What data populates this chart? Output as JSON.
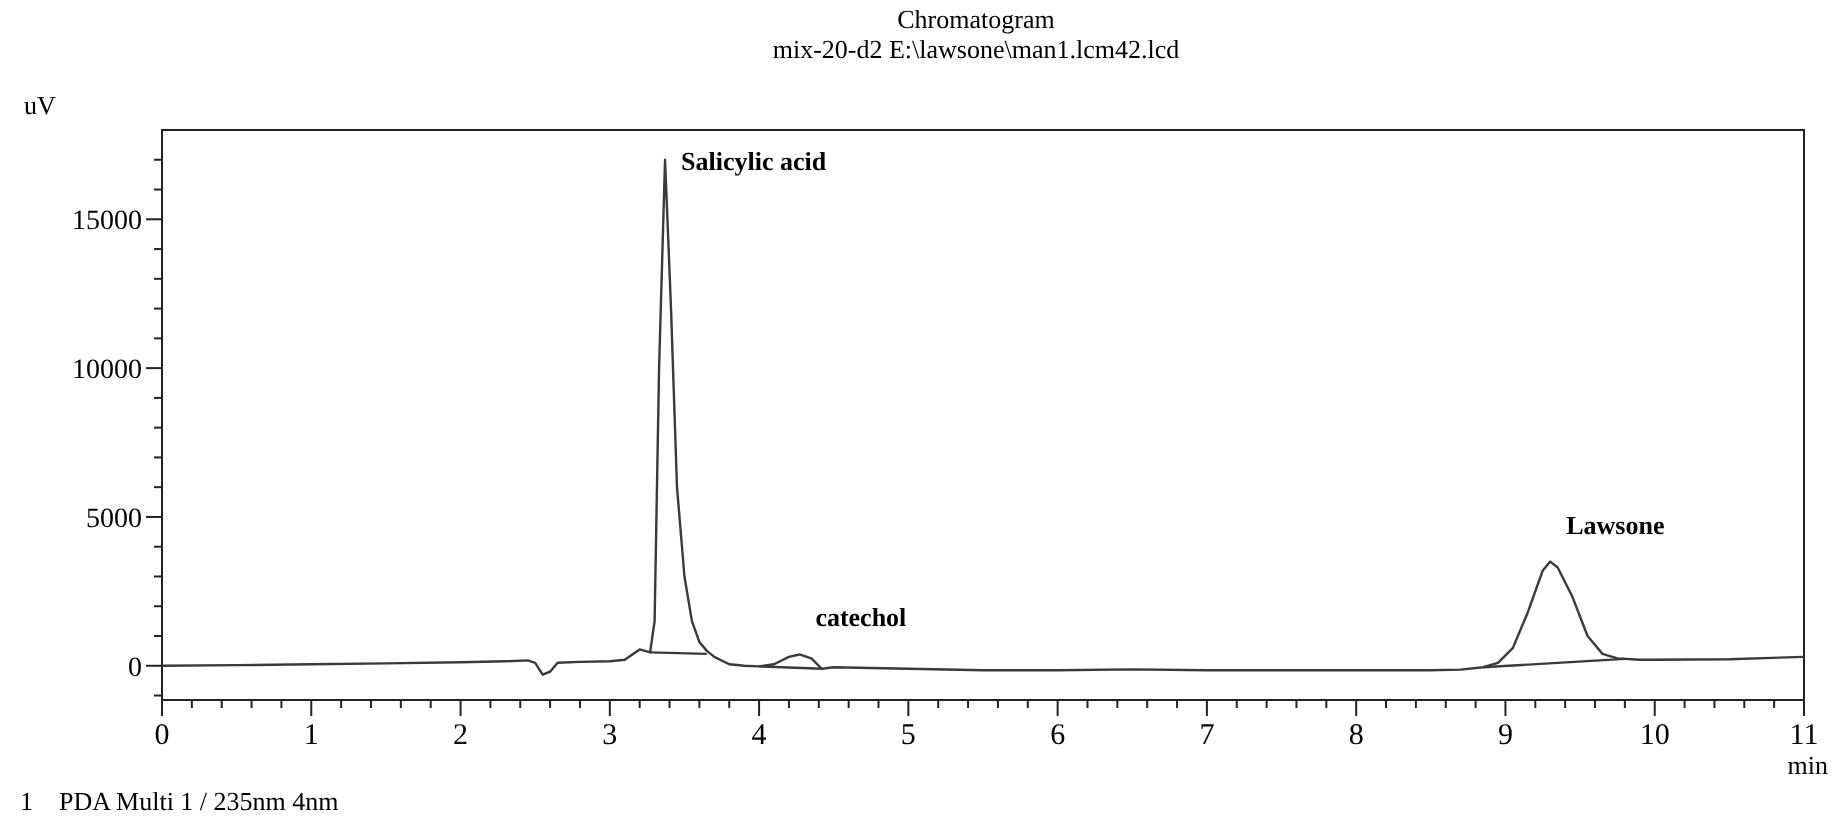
{
  "chart_data": {
    "type": "line",
    "title": "Chromatogram",
    "subtitle": "mix-20-d2 E:\\lawsone\\man1.lcm42.lcd",
    "xlabel": "min",
    "ylabel": "uV",
    "xlim": [
      0,
      11
    ],
    "ylim": [
      -1150,
      18000
    ],
    "xticks": [
      0,
      {
        "value": 0.2,
        "label": null
      },
      {
        "value": 0.4,
        "label": null
      },
      {
        "value": 0.6,
        "label": null
      },
      {
        "value": 0.8,
        "label": null
      },
      1,
      {
        "value": 1.2,
        "label": null
      },
      {
        "value": 1.4,
        "label": null
      },
      {
        "value": 1.6,
        "label": null
      },
      {
        "value": 1.8,
        "label": null
      },
      2,
      {
        "value": 2.2,
        "label": null
      },
      {
        "value": 2.4,
        "label": null
      },
      {
        "value": 2.6,
        "label": null
      },
      {
        "value": 2.8,
        "label": null
      },
      3,
      {
        "value": 3.2,
        "label": null
      },
      {
        "value": 3.4,
        "label": null
      },
      {
        "value": 3.6,
        "label": null
      },
      {
        "value": 3.8,
        "label": null
      },
      4,
      {
        "value": 4.2,
        "label": null
      },
      {
        "value": 4.4,
        "label": null
      },
      {
        "value": 4.6,
        "label": null
      },
      {
        "value": 4.8,
        "label": null
      },
      5,
      {
        "value": 5.2,
        "label": null
      },
      {
        "value": 5.4,
        "label": null
      },
      {
        "value": 5.6,
        "label": null
      },
      {
        "value": 5.8,
        "label": null
      },
      6,
      {
        "value": 6.2,
        "label": null
      },
      {
        "value": 6.4,
        "label": null
      },
      {
        "value": 6.6,
        "label": null
      },
      {
        "value": 6.8,
        "label": null
      },
      7,
      {
        "value": 7.2,
        "label": null
      },
      {
        "value": 7.4,
        "label": null
      },
      {
        "value": 7.6,
        "label": null
      },
      {
        "value": 7.8,
        "label": null
      },
      8,
      {
        "value": 8.2,
        "label": null
      },
      {
        "value": 8.4,
        "label": null
      },
      {
        "value": 8.6,
        "label": null
      },
      {
        "value": 8.8,
        "label": null
      },
      9,
      {
        "value": 9.2,
        "label": null
      },
      {
        "value": 9.4,
        "label": null
      },
      {
        "value": 9.6,
        "label": null
      },
      {
        "value": 9.8,
        "label": null
      },
      10,
      {
        "value": 10.2,
        "label": null
      },
      {
        "value": 10.4,
        "label": null
      },
      {
        "value": 10.6,
        "label": null
      },
      {
        "value": 10.8,
        "label": null
      },
      11
    ],
    "yticks": [
      {
        "value": -1000,
        "label": null
      },
      0,
      {
        "value": 1000,
        "label": null
      },
      {
        "value": 2000,
        "label": null
      },
      {
        "value": 3000,
        "label": null
      },
      {
        "value": 4000,
        "label": null
      },
      5000,
      {
        "value": 6000,
        "label": null
      },
      {
        "value": 7000,
        "label": null
      },
      {
        "value": 8000,
        "label": null
      },
      {
        "value": 9000,
        "label": null
      },
      10000,
      {
        "value": 11000,
        "label": null
      },
      {
        "value": 12000,
        "label": null
      },
      {
        "value": 13000,
        "label": null
      },
      {
        "value": 14000,
        "label": null
      },
      15000,
      {
        "value": 16000,
        "label": null
      },
      {
        "value": 17000,
        "label": null
      }
    ],
    "grid": false,
    "marker": "none",
    "line_style": "solid",
    "series": [
      {
        "color": "#3a3a3a",
        "x": [
          0,
          0.5,
          1,
          1.5,
          2,
          2.3,
          2.45,
          2.5,
          2.55,
          2.6,
          2.65,
          2.8,
          3.0,
          3.1,
          3.2,
          3.27,
          3.3,
          3.33,
          3.37,
          3.41,
          3.45,
          3.5,
          3.55,
          3.6,
          3.65,
          3.7,
          3.8,
          3.9,
          4.0,
          4.1,
          4.2,
          4.27,
          4.35,
          4.42,
          4.5,
          5,
          5.5,
          6,
          6.5,
          7,
          7.5,
          8,
          8.5,
          8.7,
          8.85,
          8.95,
          9.05,
          9.15,
          9.25,
          9.3,
          9.35,
          9.45,
          9.55,
          9.65,
          9.75,
          9.9,
          10,
          10.5,
          11
        ],
        "values": [
          0,
          20,
          50,
          80,
          120,
          150,
          180,
          100,
          -300,
          -200,
          100,
          130,
          150,
          200,
          550,
          450,
          1500,
          10000,
          17000,
          12000,
          6000,
          3000,
          1500,
          800,
          500,
          300,
          50,
          0,
          -20,
          50,
          300,
          380,
          250,
          -100,
          -50,
          -100,
          -150,
          -150,
          -120,
          -150,
          -150,
          -150,
          -150,
          -130,
          -50,
          100,
          600,
          1800,
          3200,
          3500,
          3300,
          2300,
          1000,
          400,
          250,
          200,
          200,
          220,
          300
        ]
      },
      {
        "color": "#3a3a3a",
        "x": [
          3.27,
          3.65
        ],
        "values": [
          450,
          400
        ]
      },
      {
        "color": "#3a3a3a",
        "x": [
          4.0,
          4.42
        ],
        "values": [
          -20,
          -100
        ]
      },
      {
        "color": "#3a3a3a",
        "x": [
          8.85,
          9.8
        ],
        "values": [
          -50,
          230
        ]
      }
    ],
    "annotations": [
      {
        "text": "Salicylic acid",
        "x": 3.37,
        "y": 17000
      },
      {
        "text": "catechol",
        "x": 4.27,
        "y": 380
      },
      {
        "text": "Lawsone",
        "x": 9.3,
        "y": 3500
      },
      "1    PDA Multi 1 / 235nm 4nm"
    ]
  }
}
